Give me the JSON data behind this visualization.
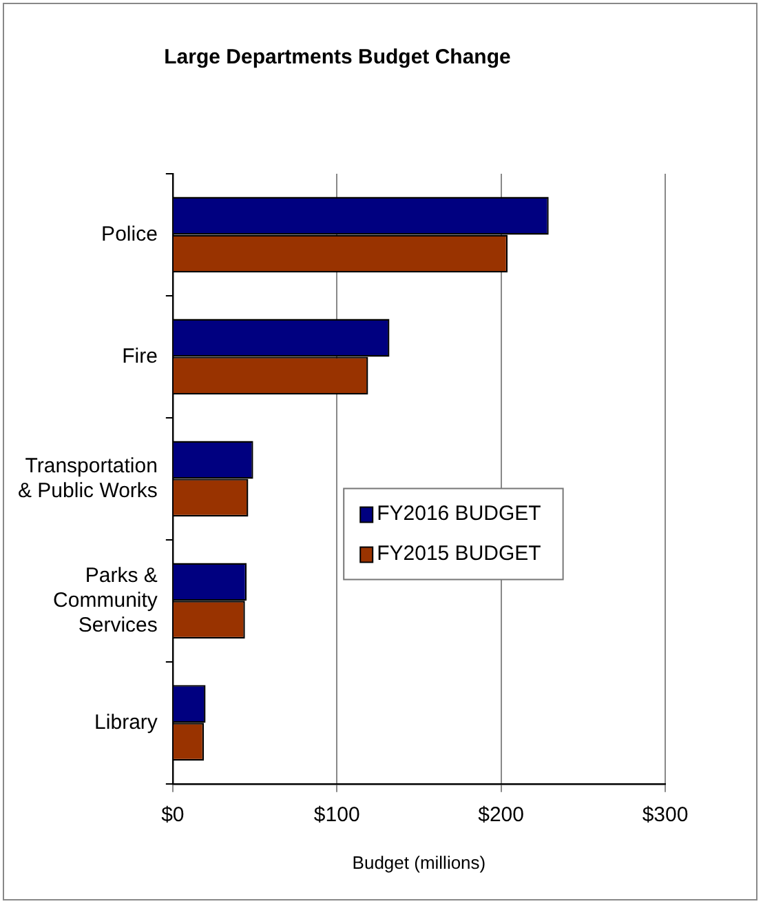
{
  "chart_data": {
    "type": "bar",
    "orientation": "horizontal",
    "title": "Large Departments Budget Change",
    "xlabel": "Budget (millions)",
    "categories": [
      "Police",
      "Fire",
      "Transportation & Public Works",
      "Parks & Community Services",
      "Library"
    ],
    "series": [
      {
        "name": "FY2016 BUDGET",
        "color": "#000080",
        "values": [
          229,
          132,
          49,
          45,
          20
        ]
      },
      {
        "name": "FY2015 BUDGET",
        "color": "#993300",
        "values": [
          204,
          119,
          46,
          44,
          19
        ]
      }
    ],
    "xlim": [
      0,
      300
    ],
    "xticks": [
      {
        "value": 0,
        "label": "$0"
      },
      {
        "value": 100,
        "label": "$100"
      },
      {
        "value": 200,
        "label": "$200"
      },
      {
        "value": 300,
        "label": "$300"
      }
    ],
    "grid": "x",
    "legend": "center"
  }
}
